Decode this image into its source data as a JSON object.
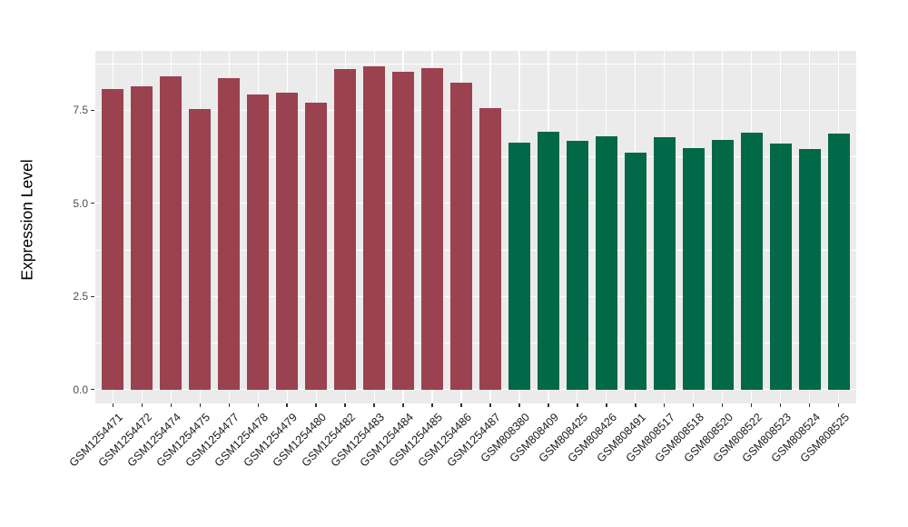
{
  "chart_data": {
    "type": "bar",
    "title": "",
    "xlabel": "",
    "ylabel": "Expression Level",
    "ytick_labels": [
      "0.0",
      "2.5",
      "5.0",
      "7.5"
    ],
    "yticks": [
      0,
      2.5,
      5,
      7.5
    ],
    "minor_yticks": [
      1.25,
      3.75,
      6.25,
      8.75
    ],
    "ylim": [
      -0.37,
      9.09
    ],
    "grid": true,
    "legend_position": "none",
    "panel_bg": "#EBEBEB",
    "grid_color": "#FFFFFF",
    "bar_width_fraction": 0.75,
    "series": [
      {
        "name": "group-1",
        "color": "#9B4250",
        "categories": [
          "GSM1254471",
          "GSM1254472",
          "GSM1254474",
          "GSM1254475",
          "GSM1254477",
          "GSM1254478",
          "GSM1254479",
          "GSM1254480",
          "GSM1254482",
          "GSM1254483",
          "GSM1254484",
          "GSM1254485",
          "GSM1254486",
          "GSM1254487"
        ],
        "values": [
          8.06,
          8.14,
          8.41,
          7.54,
          8.37,
          7.93,
          7.96,
          7.69,
          8.6,
          8.67,
          8.53,
          8.63,
          8.24,
          7.56
        ]
      },
      {
        "name": "group-2",
        "color": "#016848",
        "categories": [
          "GSM808380",
          "GSM808409",
          "GSM808425",
          "GSM808426",
          "GSM808491",
          "GSM808517",
          "GSM808518",
          "GSM808520",
          "GSM808522",
          "GSM808523",
          "GSM808524",
          "GSM808525"
        ],
        "values": [
          6.62,
          6.92,
          6.68,
          6.81,
          6.37,
          6.78,
          6.49,
          6.69,
          6.9,
          6.61,
          6.45,
          6.87
        ]
      }
    ]
  }
}
